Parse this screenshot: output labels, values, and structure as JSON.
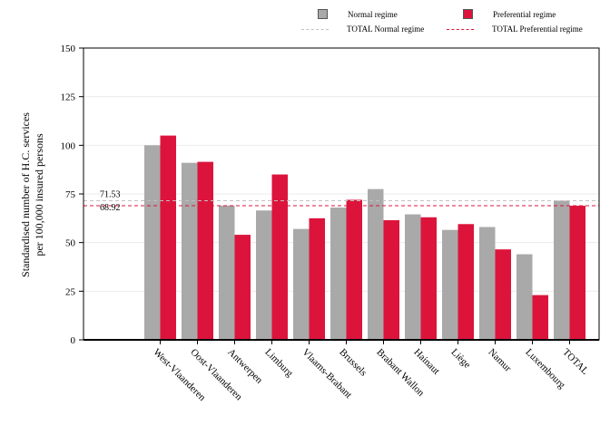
{
  "chart_data": {
    "type": "bar",
    "ylabel_line1": "Standardised number of H.C. services",
    "ylabel_line2": "per 100,000 insured persons",
    "ylim": [
      0,
      150
    ],
    "yticks": [
      0,
      25,
      50,
      75,
      100,
      125,
      150
    ],
    "grid": true,
    "legend_position": "top-right",
    "categories": [
      "West-Vlaanderen",
      "Oost-Vlaanderen",
      "Antwerpen",
      "Limburg",
      "Vlaams-Brabant",
      "Brussels",
      "Brabant Wallon",
      "Hainaut",
      "Liège",
      "Namur",
      "Luxembourg",
      "TOTAL"
    ],
    "series": [
      {
        "name": "Normal regime",
        "color": "#a9a9a9",
        "values": [
          100,
          91,
          69,
          66.5,
          57,
          68,
          77.5,
          64.5,
          56.5,
          58,
          44,
          71.53
        ]
      },
      {
        "name": "Preferential regime",
        "color": "#dc143c",
        "values": [
          105,
          91.5,
          54,
          85,
          62.5,
          72,
          61.5,
          63,
          59.5,
          46.5,
          23,
          68.92
        ]
      }
    ],
    "reference_lines": [
      {
        "name": "TOTAL Normal regime",
        "value": 71.53,
        "label": "71.53",
        "color": "#c0c0c0"
      },
      {
        "name": "TOTAL Preferential regime",
        "value": 68.92,
        "label": "68.92",
        "color": "#dc143c"
      }
    ]
  }
}
